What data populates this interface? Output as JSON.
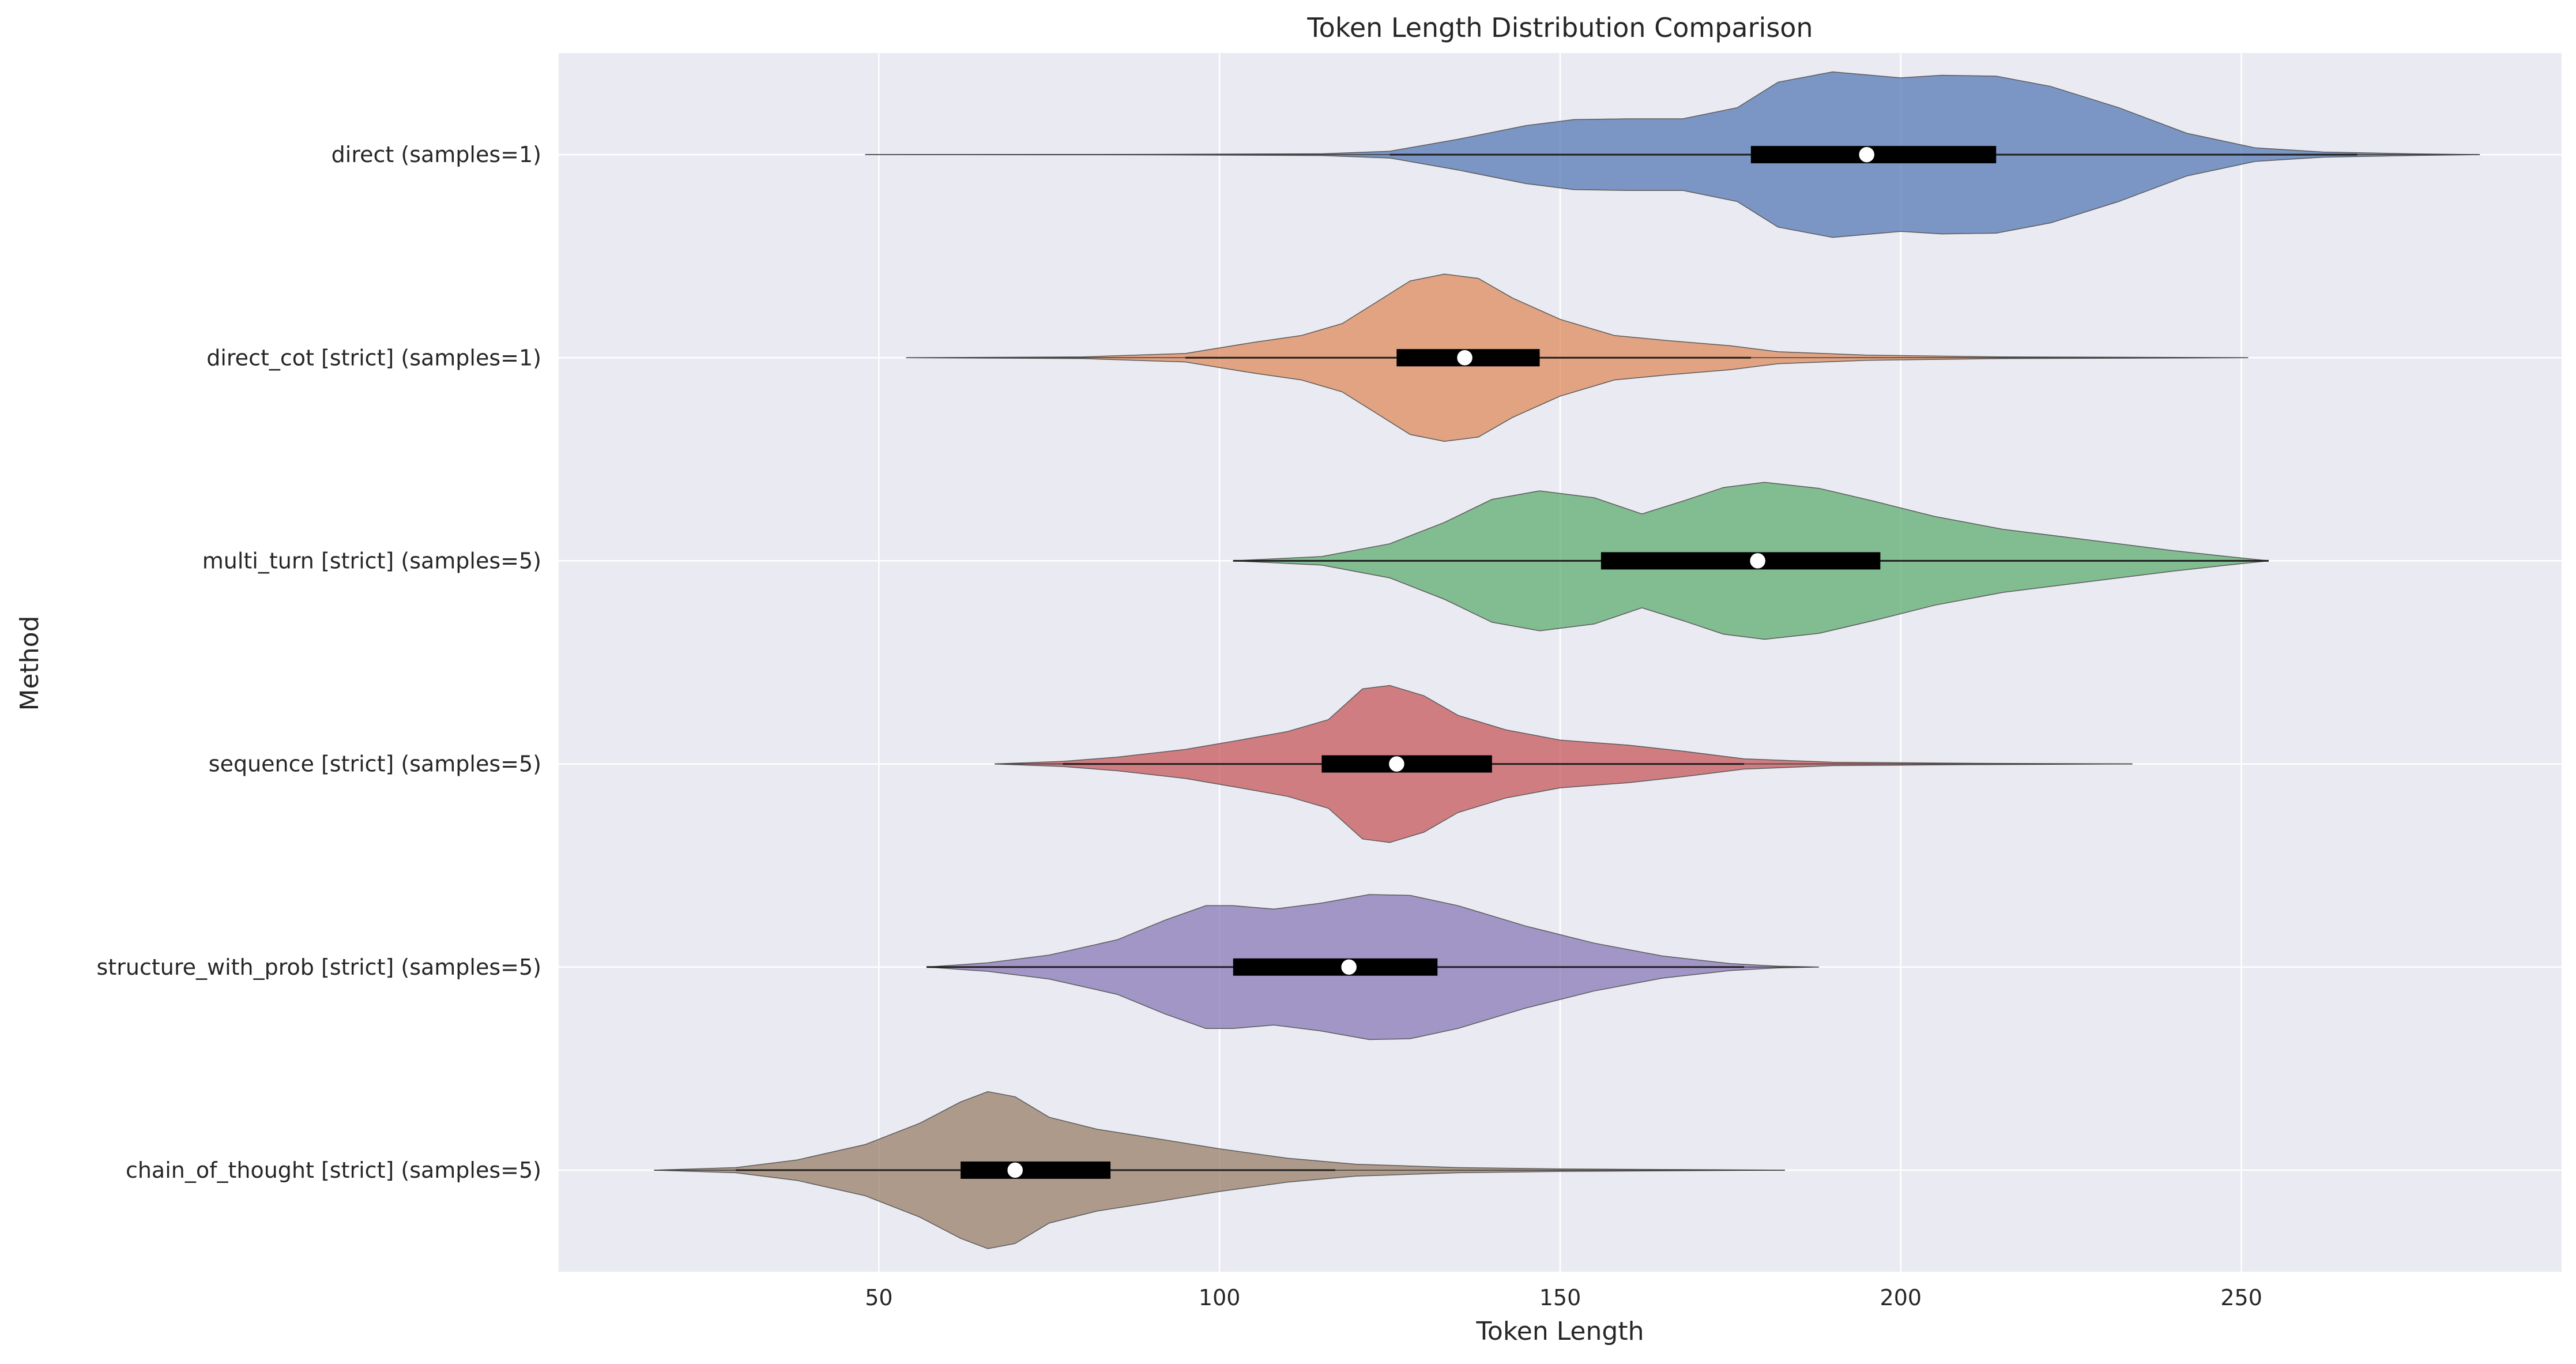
{
  "chart_data": {
    "type": "violin",
    "orientation": "horizontal",
    "title": "Token Length Distribution Comparison",
    "xlabel": "Token Length",
    "ylabel": "Method",
    "xlim": [
      3,
      297
    ],
    "xticks": [
      50,
      100,
      150,
      200,
      250
    ],
    "grid": true,
    "background": "#eaeaf2",
    "series": [
      {
        "name": "direct (samples=1)",
        "color": "#4c72b0",
        "min": 48,
        "max": 285,
        "q1": 178,
        "median": 195,
        "q3": 214,
        "whisker_low": 125,
        "whisker_high": 267,
        "density": [
          [
            48,
            0
          ],
          [
            90,
            0.003
          ],
          [
            115,
            0.01
          ],
          [
            125,
            0.04
          ],
          [
            135,
            0.18
          ],
          [
            145,
            0.34
          ],
          [
            152,
            0.41
          ],
          [
            160,
            0.42
          ],
          [
            168,
            0.42
          ],
          [
            176,
            0.55
          ],
          [
            182,
            0.85
          ],
          [
            190,
            0.97
          ],
          [
            200,
            0.9
          ],
          [
            206,
            0.93
          ],
          [
            214,
            0.92
          ],
          [
            222,
            0.8
          ],
          [
            232,
            0.55
          ],
          [
            242,
            0.25
          ],
          [
            252,
            0.08
          ],
          [
            262,
            0.03
          ],
          [
            275,
            0.01
          ],
          [
            285,
            0
          ]
        ]
      },
      {
        "name": "direct_cot [strict] (samples=1)",
        "color": "#dd8452",
        "min": 54,
        "max": 251,
        "q1": 126,
        "median": 136,
        "q3": 147,
        "whisker_low": 95,
        "whisker_high": 178,
        "density": [
          [
            54,
            0
          ],
          [
            80,
            0.01
          ],
          [
            95,
            0.05
          ],
          [
            105,
            0.18
          ],
          [
            112,
            0.26
          ],
          [
            118,
            0.4
          ],
          [
            124,
            0.7
          ],
          [
            128,
            0.9
          ],
          [
            133,
            0.98
          ],
          [
            138,
            0.93
          ],
          [
            143,
            0.7
          ],
          [
            150,
            0.45
          ],
          [
            158,
            0.26
          ],
          [
            166,
            0.2
          ],
          [
            175,
            0.14
          ],
          [
            182,
            0.07
          ],
          [
            195,
            0.03
          ],
          [
            215,
            0.01
          ],
          [
            235,
            0.005
          ],
          [
            251,
            0
          ]
        ]
      },
      {
        "name": "multi_turn [strict] (samples=5)",
        "color": "#55a868",
        "min": 102,
        "max": 254,
        "q1": 156,
        "median": 179,
        "q3": 197,
        "whisker_low": 102,
        "whisker_high": 254,
        "density": [
          [
            102,
            0
          ],
          [
            115,
            0.05
          ],
          [
            125,
            0.2
          ],
          [
            133,
            0.45
          ],
          [
            140,
            0.72
          ],
          [
            147,
            0.82
          ],
          [
            155,
            0.74
          ],
          [
            162,
            0.55
          ],
          [
            168,
            0.7
          ],
          [
            174,
            0.86
          ],
          [
            180,
            0.92
          ],
          [
            188,
            0.85
          ],
          [
            196,
            0.7
          ],
          [
            205,
            0.52
          ],
          [
            215,
            0.37
          ],
          [
            228,
            0.24
          ],
          [
            240,
            0.12
          ],
          [
            248,
            0.05
          ],
          [
            254,
            0
          ]
        ]
      },
      {
        "name": "sequence [strict] (samples=5)",
        "color": "#c44e52",
        "min": 67,
        "max": 234,
        "q1": 115,
        "median": 126,
        "q3": 140,
        "whisker_low": 77,
        "whisker_high": 177,
        "density": [
          [
            67,
            0
          ],
          [
            77,
            0.03
          ],
          [
            85,
            0.08
          ],
          [
            95,
            0.17
          ],
          [
            103,
            0.28
          ],
          [
            110,
            0.38
          ],
          [
            116,
            0.52
          ],
          [
            121,
            0.88
          ],
          [
            125,
            0.92
          ],
          [
            130,
            0.8
          ],
          [
            135,
            0.57
          ],
          [
            142,
            0.4
          ],
          [
            150,
            0.28
          ],
          [
            160,
            0.22
          ],
          [
            168,
            0.15
          ],
          [
            177,
            0.06
          ],
          [
            190,
            0.02
          ],
          [
            210,
            0.008
          ],
          [
            234,
            0
          ]
        ]
      },
      {
        "name": "structure_with_prob [strict] (samples=5)",
        "color": "#8172b3",
        "min": 57,
        "max": 188,
        "q1": 102,
        "median": 119,
        "q3": 132,
        "whisker_low": 57,
        "whisker_high": 177,
        "density": [
          [
            57,
            0
          ],
          [
            66,
            0.05
          ],
          [
            75,
            0.14
          ],
          [
            85,
            0.32
          ],
          [
            92,
            0.55
          ],
          [
            98,
            0.72
          ],
          [
            102,
            0.72
          ],
          [
            108,
            0.68
          ],
          [
            115,
            0.75
          ],
          [
            122,
            0.85
          ],
          [
            128,
            0.84
          ],
          [
            135,
            0.72
          ],
          [
            145,
            0.48
          ],
          [
            155,
            0.28
          ],
          [
            165,
            0.13
          ],
          [
            175,
            0.04
          ],
          [
            182,
            0.01
          ],
          [
            188,
            0
          ]
        ]
      },
      {
        "name": "chain_of_thought [strict] (samples=5)",
        "color": "#937860",
        "min": 17,
        "max": 183,
        "q1": 62,
        "median": 70,
        "q3": 84,
        "whisker_low": 29,
        "whisker_high": 117,
        "density": [
          [
            17,
            0
          ],
          [
            29,
            0.03
          ],
          [
            38,
            0.12
          ],
          [
            48,
            0.3
          ],
          [
            56,
            0.55
          ],
          [
            62,
            0.8
          ],
          [
            66,
            0.92
          ],
          [
            70,
            0.86
          ],
          [
            75,
            0.62
          ],
          [
            82,
            0.48
          ],
          [
            90,
            0.38
          ],
          [
            100,
            0.25
          ],
          [
            110,
            0.14
          ],
          [
            120,
            0.07
          ],
          [
            135,
            0.03
          ],
          [
            150,
            0.015
          ],
          [
            165,
            0.008
          ],
          [
            183,
            0
          ]
        ]
      }
    ]
  }
}
